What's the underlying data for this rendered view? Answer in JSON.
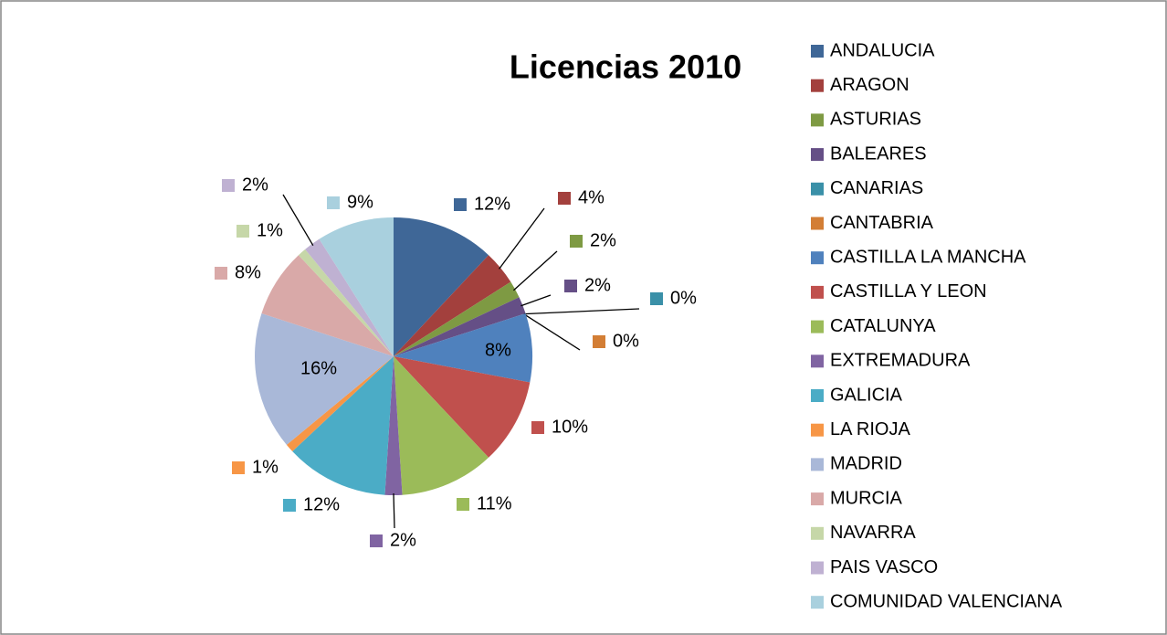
{
  "chart_data": {
    "type": "pie",
    "title": "Licencias 2010",
    "categories": [
      "ANDALUCIA",
      "ARAGON",
      "ASTURIAS",
      "BALEARES",
      "CANARIAS",
      "CANTABRIA",
      "CASTILLA LA MANCHA",
      "CASTILLA Y LEON",
      "CATALUNYA",
      "EXTREMADURA",
      "GALICIA",
      "LA RIOJA",
      "MADRID",
      "MURCIA",
      "NAVARRA",
      "PAIS VASCO",
      "COMUNIDAD VALENCIANA"
    ],
    "values": [
      12,
      4,
      2,
      2,
      0,
      0,
      8,
      10,
      11,
      2,
      12,
      1,
      16,
      8,
      1,
      2,
      9
    ],
    "value_labels": [
      "12%",
      "4%",
      "2%",
      "2%",
      "0%",
      "0%",
      "8%",
      "10%",
      "11%",
      "2%",
      "12%",
      "1%",
      "16%",
      "8%",
      "1%",
      "2%",
      "9%"
    ],
    "colors": [
      "#3F6797",
      "#A3403D",
      "#7E9A43",
      "#654F86",
      "#3A90A8",
      "#D37E35",
      "#4F81BD",
      "#C0504D",
      "#9BBB59",
      "#8064A2",
      "#4BACC6",
      "#F79646",
      "#A9B8D8",
      "#D9A9A8",
      "#C6D7A8",
      "#BFB1D2",
      "#A9D0DE"
    ],
    "legend": "right"
  }
}
